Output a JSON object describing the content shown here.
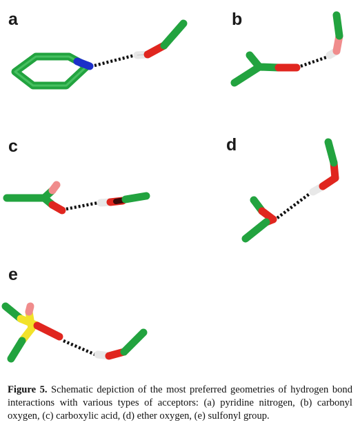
{
  "panels": {
    "a": "a",
    "b": "b",
    "c": "c",
    "d": "d",
    "e": "e"
  },
  "caption": {
    "label": "Figure 5.",
    "text": "Schematic depiction of the most preferred geometries of hydrogen bond interactions with various types of acceptors: (a) pyridine nitrogen, (b) carbonyl oxygen, (c) carboxylic acid, (d) ether oxygen, (e) sulfonyl group."
  },
  "colors": {
    "carbon": "#2db34a",
    "nitrogen": "#1c2fc9",
    "oxygen": "#e0261f",
    "hydrogen_polar": "#e8e8e8",
    "hydrogen_on_acid": "#f08c8c",
    "sulfur": "#f2e22a",
    "hbond": "#111111"
  }
}
